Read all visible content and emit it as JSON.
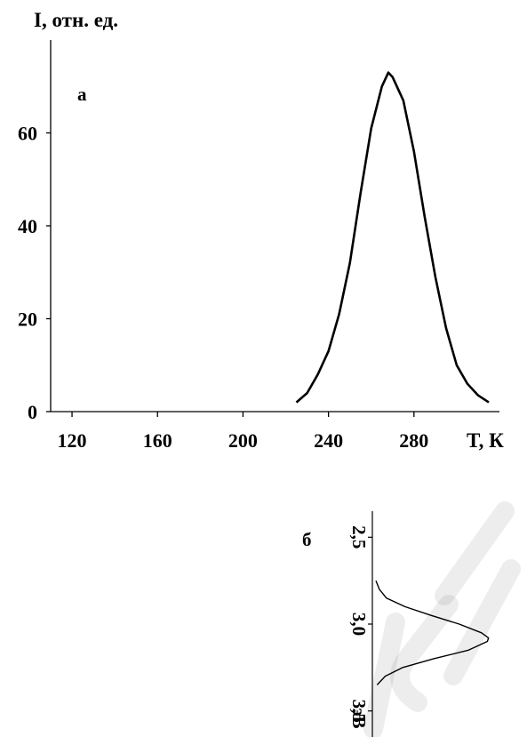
{
  "chart_data": [
    {
      "type": "line",
      "panel_label": "а",
      "ylabel": "I, отн. ед.",
      "xlabel": "T, К",
      "xlim": [
        110,
        320
      ],
      "ylim": [
        0,
        80
      ],
      "x_ticks": [
        120,
        160,
        200,
        240,
        280
      ],
      "y_ticks": [
        0,
        20,
        40,
        60
      ],
      "grid": false,
      "series": [
        {
          "x": [
            225,
            230,
            235,
            240,
            245,
            250,
            255,
            260,
            265,
            268,
            270,
            275,
            280,
            285,
            290,
            295,
            300,
            305,
            310,
            315
          ],
          "y": [
            2,
            4,
            8,
            13,
            21,
            32,
            47,
            61,
            70,
            73,
            72,
            67,
            56,
            42,
            29,
            18,
            10,
            6,
            3.5,
            2
          ]
        }
      ]
    },
    {
      "type": "line",
      "panel_label": "б",
      "ylabel": "эВ",
      "orientation": "rotated",
      "xlim": [
        2.35,
        3.65
      ],
      "y_ticks": [
        2.5,
        3.0,
        3.5
      ],
      "y_tick_labels": [
        "2,5",
        "3,0",
        "3,5"
      ],
      "grid": false,
      "series": [
        {
          "x": [
            2.75,
            2.8,
            2.85,
            2.9,
            2.95,
            3.0,
            3.05,
            3.08,
            3.1,
            3.15,
            3.2,
            3.25,
            3.3,
            3.35
          ],
          "y": [
            0.03,
            0.06,
            0.12,
            0.28,
            0.5,
            0.74,
            0.93,
            0.99,
            0.98,
            0.82,
            0.52,
            0.26,
            0.11,
            0.04
          ]
        }
      ]
    }
  ],
  "watermark_color": "#000000"
}
